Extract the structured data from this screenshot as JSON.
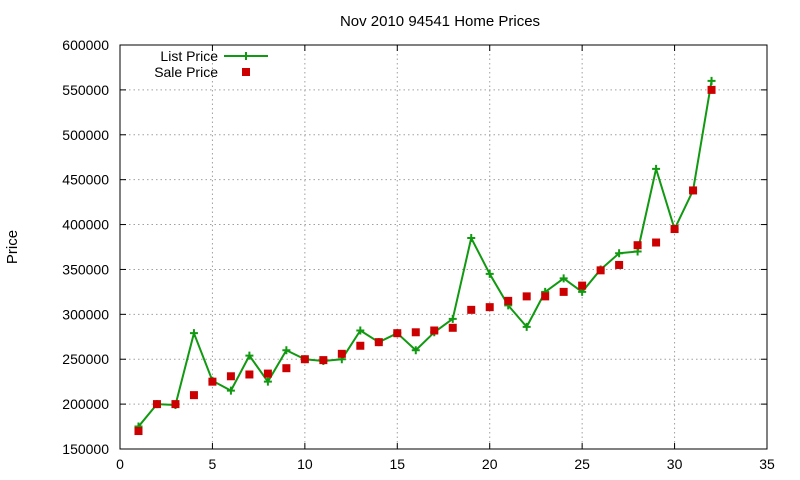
{
  "chart_data": {
    "type": "line",
    "title": "Nov 2010 94541 Home Prices",
    "xlabel": "",
    "ylabel": "Price",
    "xlim": [
      0,
      35
    ],
    "ylim": [
      150000,
      600000
    ],
    "x_ticks": [
      0,
      5,
      10,
      15,
      20,
      25,
      30,
      35
    ],
    "y_ticks": [
      150000,
      200000,
      250000,
      300000,
      350000,
      400000,
      450000,
      500000,
      550000,
      600000
    ],
    "grid": true,
    "legend_position": "top-left",
    "series": [
      {
        "name": "List Price",
        "style": "line-with-plus-markers",
        "color": "#119911",
        "x": [
          1,
          2,
          3,
          4,
          5,
          6,
          7,
          8,
          9,
          10,
          11,
          12,
          13,
          14,
          15,
          16,
          17,
          18,
          19,
          20,
          21,
          22,
          23,
          24,
          25,
          26,
          27,
          28,
          29,
          30,
          31,
          32
        ],
        "y": [
          175000,
          200000,
          199000,
          279000,
          226000,
          215000,
          254000,
          225000,
          260000,
          250000,
          248000,
          250000,
          282000,
          269000,
          279000,
          260000,
          280000,
          295000,
          385000,
          345000,
          310000,
          286000,
          325000,
          340000,
          325000,
          350000,
          368000,
          370000,
          462000,
          395000,
          438000,
          560000
        ]
      },
      {
        "name": "Sale Price",
        "style": "square-markers",
        "color": "#cc0000",
        "x": [
          1,
          2,
          3,
          4,
          5,
          6,
          7,
          8,
          9,
          10,
          11,
          12,
          13,
          14,
          15,
          16,
          17,
          18,
          19,
          20,
          21,
          22,
          23,
          24,
          25,
          26,
          27,
          28,
          29,
          30,
          31,
          32
        ],
        "y": [
          170000,
          200000,
          200000,
          210000,
          225000,
          231000,
          233000,
          234000,
          240000,
          250000,
          249000,
          256000,
          265000,
          269000,
          279000,
          280000,
          282000,
          285000,
          305000,
          308000,
          315000,
          320000,
          320000,
          325000,
          332000,
          349000,
          355000,
          377000,
          380000,
          395000,
          438000,
          550000
        ]
      }
    ]
  }
}
